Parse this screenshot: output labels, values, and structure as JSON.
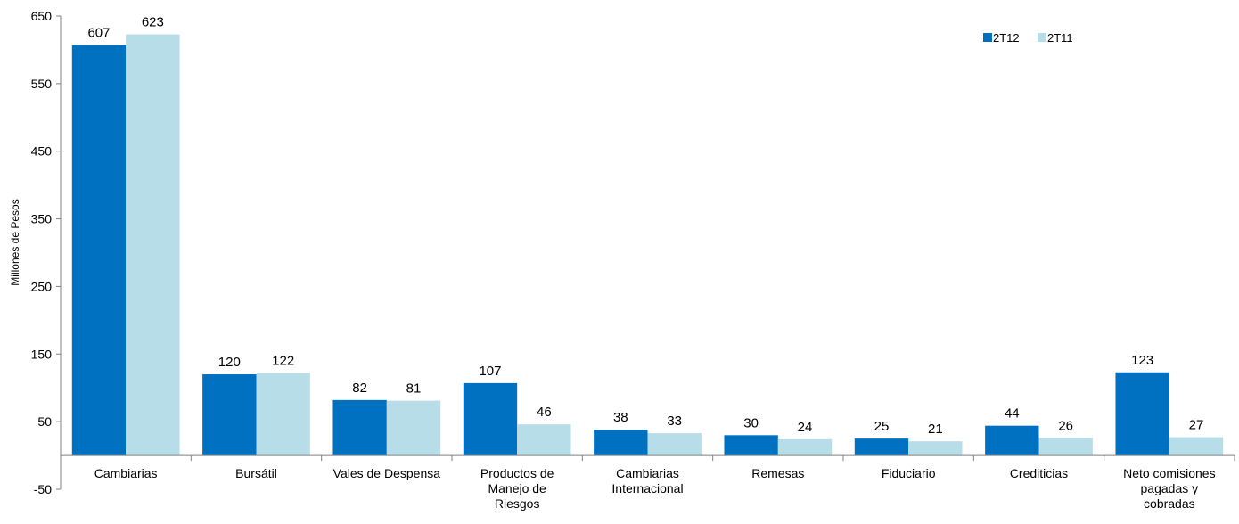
{
  "chart_data": {
    "type": "bar",
    "ylabel": "Millones de Pesos",
    "xlabel": "",
    "ylim": [
      -50,
      650
    ],
    "yticks": [
      650,
      550,
      450,
      350,
      250,
      150,
      50,
      -50
    ],
    "categories": [
      [
        "Cambiarias"
      ],
      [
        "Bursátil"
      ],
      [
        "Vales de Despensa"
      ],
      [
        "Productos de",
        "Manejo de",
        "Riesgos"
      ],
      [
        "Cambiarias",
        "Internacional"
      ],
      [
        "Remesas"
      ],
      [
        "Fiduciario"
      ],
      [
        "Crediticias"
      ],
      [
        "Neto comisiones",
        "pagadas y",
        "cobradas"
      ]
    ],
    "series": [
      {
        "name": "2T12",
        "color": "#0070C0",
        "values": [
          607,
          120,
          82,
          107,
          38,
          30,
          25,
          44,
          123
        ]
      },
      {
        "name": "2T11",
        "color": "#B7DEE8",
        "values": [
          623,
          122,
          81,
          46,
          33,
          24,
          21,
          26,
          27
        ]
      }
    ],
    "legend_position": "top-right",
    "grid": false
  }
}
